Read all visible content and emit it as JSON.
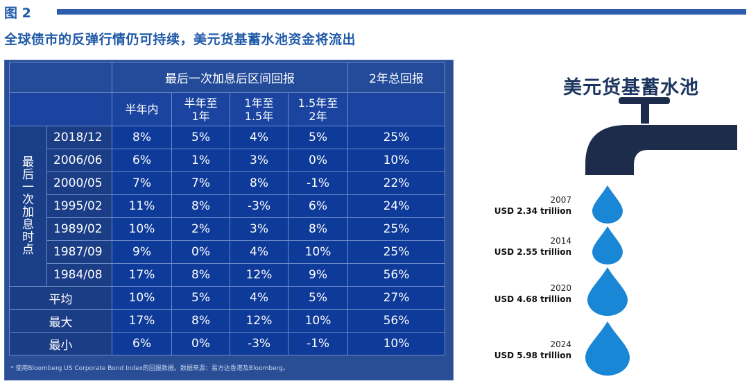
{
  "figure": {
    "label": "图 2",
    "title": "全球债市的反弹行情仍可持续，美元货基蓄水池资金将流出"
  },
  "table": {
    "header_group": "最后一次加息后区间回报",
    "header_total": "2年总回报",
    "subheaders": [
      "半年内",
      "半年至\n1年",
      "1年至\n1.5年",
      "1.5年至\n2年"
    ],
    "row_group_label": [
      "最",
      "后",
      "一",
      "次",
      "加",
      "息",
      "时",
      "点"
    ],
    "rows": [
      {
        "date": "2018/12",
        "h1": "8%",
        "h2": "5%",
        "h3": "4%",
        "h4": "5%",
        "total": "25%"
      },
      {
        "date": "2006/06",
        "h1": "6%",
        "h2": "1%",
        "h3": "3%",
        "h4": "0%",
        "total": "10%"
      },
      {
        "date": "2000/05",
        "h1": "7%",
        "h2": "7%",
        "h3": "8%",
        "h4": "-1%",
        "total": "22%"
      },
      {
        "date": "1995/02",
        "h1": "11%",
        "h2": "8%",
        "h3": "-3%",
        "h4": "6%",
        "total": "24%"
      },
      {
        "date": "1989/02",
        "h1": "10%",
        "h2": "2%",
        "h3": "3%",
        "h4": "8%",
        "total": "25%"
      },
      {
        "date": "1987/09",
        "h1": "9%",
        "h2": "0%",
        "h3": "4%",
        "h4": "10%",
        "total": "25%"
      },
      {
        "date": "1984/08",
        "h1": "17%",
        "h2": "8%",
        "h3": "12%",
        "h4": "9%",
        "total": "56%"
      }
    ],
    "stats": [
      {
        "label": "平均",
        "h1": "10%",
        "h2": "5%",
        "h3": "4%",
        "h4": "5%",
        "total": "27%"
      },
      {
        "label": "最大",
        "h1": "17%",
        "h2": "8%",
        "h3": "12%",
        "h4": "10%",
        "total": "56%"
      },
      {
        "label": "最小",
        "h1": "6%",
        "h2": "0%",
        "h3": "-3%",
        "h4": "-1%",
        "total": "10%"
      }
    ],
    "footnote": "* 使用Bloomberg US Corporate Bond Index的回报数据。数据来源：易方达香港及Bloomberg。"
  },
  "pool": {
    "title": "美元货基蓄水池",
    "faucet_color": "#1c2c4a",
    "drop_color": "#1a86d6",
    "drops": [
      {
        "year": "2007",
        "amount": "USD 2.34 trillion"
      },
      {
        "year": "2014",
        "amount": "USD 2.55 trillion"
      },
      {
        "year": "2020",
        "amount": "USD 4.68 trillion"
      },
      {
        "year": "2024",
        "amount": "USD 5.98 trillion"
      }
    ]
  }
}
